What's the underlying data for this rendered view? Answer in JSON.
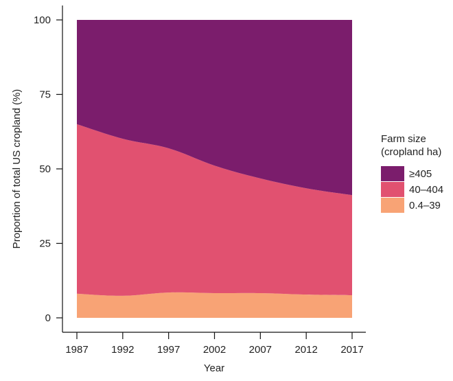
{
  "chart_data": {
    "type": "area",
    "stacked": true,
    "title": "",
    "xlabel": "Year",
    "ylabel": "Proportion of total US cropland (%)",
    "x": [
      1987,
      1992,
      1997,
      2002,
      2007,
      2012,
      2017
    ],
    "xticks": [
      "1987",
      "1992",
      "1997",
      "2002",
      "2007",
      "2012",
      "2017"
    ],
    "yticks": [
      "0",
      "25",
      "50",
      "75",
      "100"
    ],
    "ylim": [
      0,
      100
    ],
    "xlim": [
      1987,
      2017
    ],
    "grid": false,
    "series": [
      {
        "name": "0.4–39",
        "color": "#f8a375",
        "values": [
          8.1,
          7.4,
          8.5,
          8.3,
          8.3,
          7.8,
          7.6
        ]
      },
      {
        "name": "40–404",
        "color": "#e15170",
        "values": [
          56.9,
          52.7,
          48.4,
          42.8,
          38.5,
          35.7,
          33.6
        ]
      },
      {
        "name": "≥405",
        "color": "#7b1d6c",
        "values": [
          35.0,
          39.9,
          43.1,
          48.9,
          53.2,
          56.5,
          58.8
        ]
      }
    ],
    "legend": {
      "title_line1": "Farm size",
      "title_line2": "(cropland ha)",
      "placement": "right",
      "items": [
        {
          "label": "≥405",
          "color": "#7b1d6c"
        },
        {
          "label": "40–404",
          "color": "#e15170"
        },
        {
          "label": "0.4–39",
          "color": "#f8a375"
        }
      ]
    }
  }
}
